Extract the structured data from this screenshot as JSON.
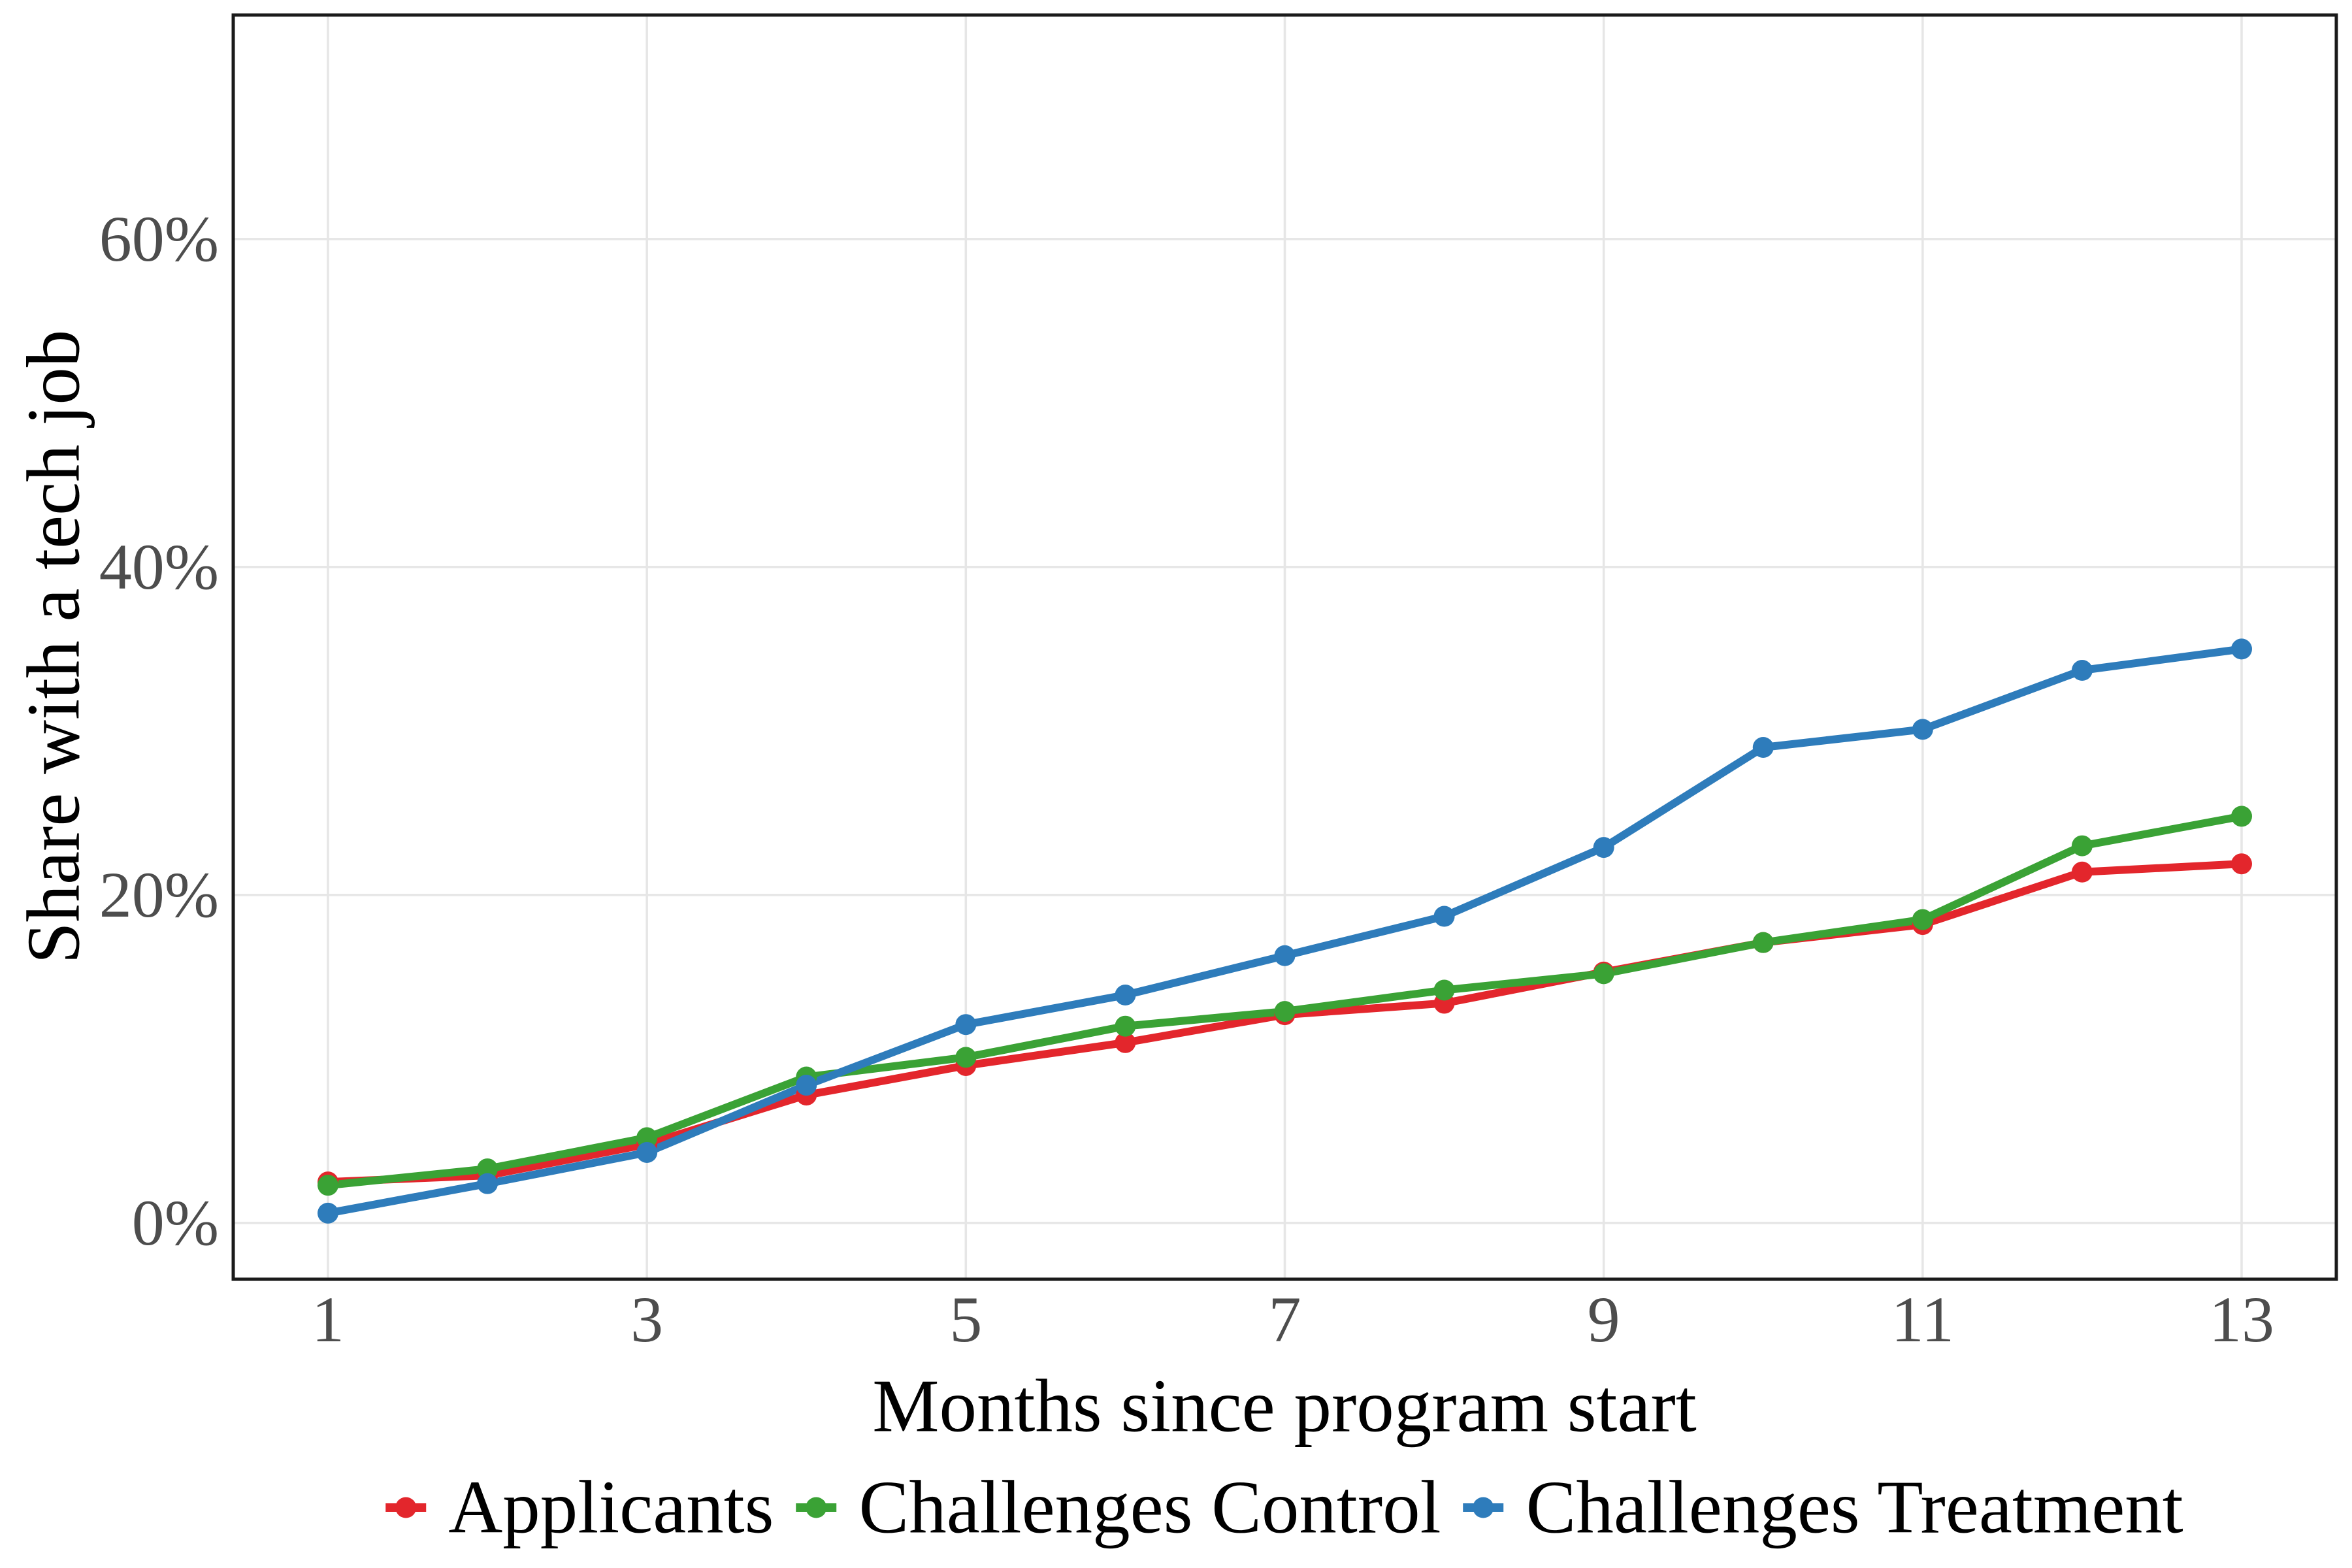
{
  "chart_data": {
    "type": "line",
    "title": "",
    "xlabel": "Months since program start",
    "ylabel": "Share with a tech job",
    "x": [
      1,
      2,
      3,
      4,
      5,
      6,
      7,
      8,
      9,
      10,
      11,
      12,
      13
    ],
    "series": [
      {
        "name": "Applicants",
        "color": "#e3262c",
        "values": [
          2.5,
          2.9,
          4.8,
          7.8,
          9.6,
          11.0,
          12.7,
          13.4,
          15.3,
          17.1,
          18.2,
          21.4,
          21.9
        ]
      },
      {
        "name": "Challenges Control",
        "color": "#3aa235",
        "values": [
          2.3,
          3.3,
          5.2,
          8.9,
          10.1,
          12.0,
          12.9,
          14.2,
          15.2,
          17.1,
          18.5,
          23.0,
          24.8
        ]
      },
      {
        "name": "Challenges Treatment",
        "color": "#2e7cbb",
        "values": [
          0.6,
          2.4,
          4.3,
          8.4,
          12.1,
          13.9,
          16.3,
          18.7,
          22.9,
          29.0,
          30.1,
          33.7,
          35.0
        ]
      }
    ],
    "x_ticks": [
      1,
      3,
      5,
      7,
      9,
      11,
      13
    ],
    "y_ticks": [
      0,
      20,
      40,
      60
    ],
    "y_tick_suffix": "%",
    "xlim": [
      0.406,
      13.594
    ],
    "ylim": [
      -3.43,
      73.66
    ],
    "grid": "major-only",
    "legend_position": "bottom",
    "colors": {
      "gridline": "#e6e6e6",
      "panel_border": "#1a1a1a",
      "tick_text": "#4d4d4d",
      "title_text": "#000000"
    }
  }
}
